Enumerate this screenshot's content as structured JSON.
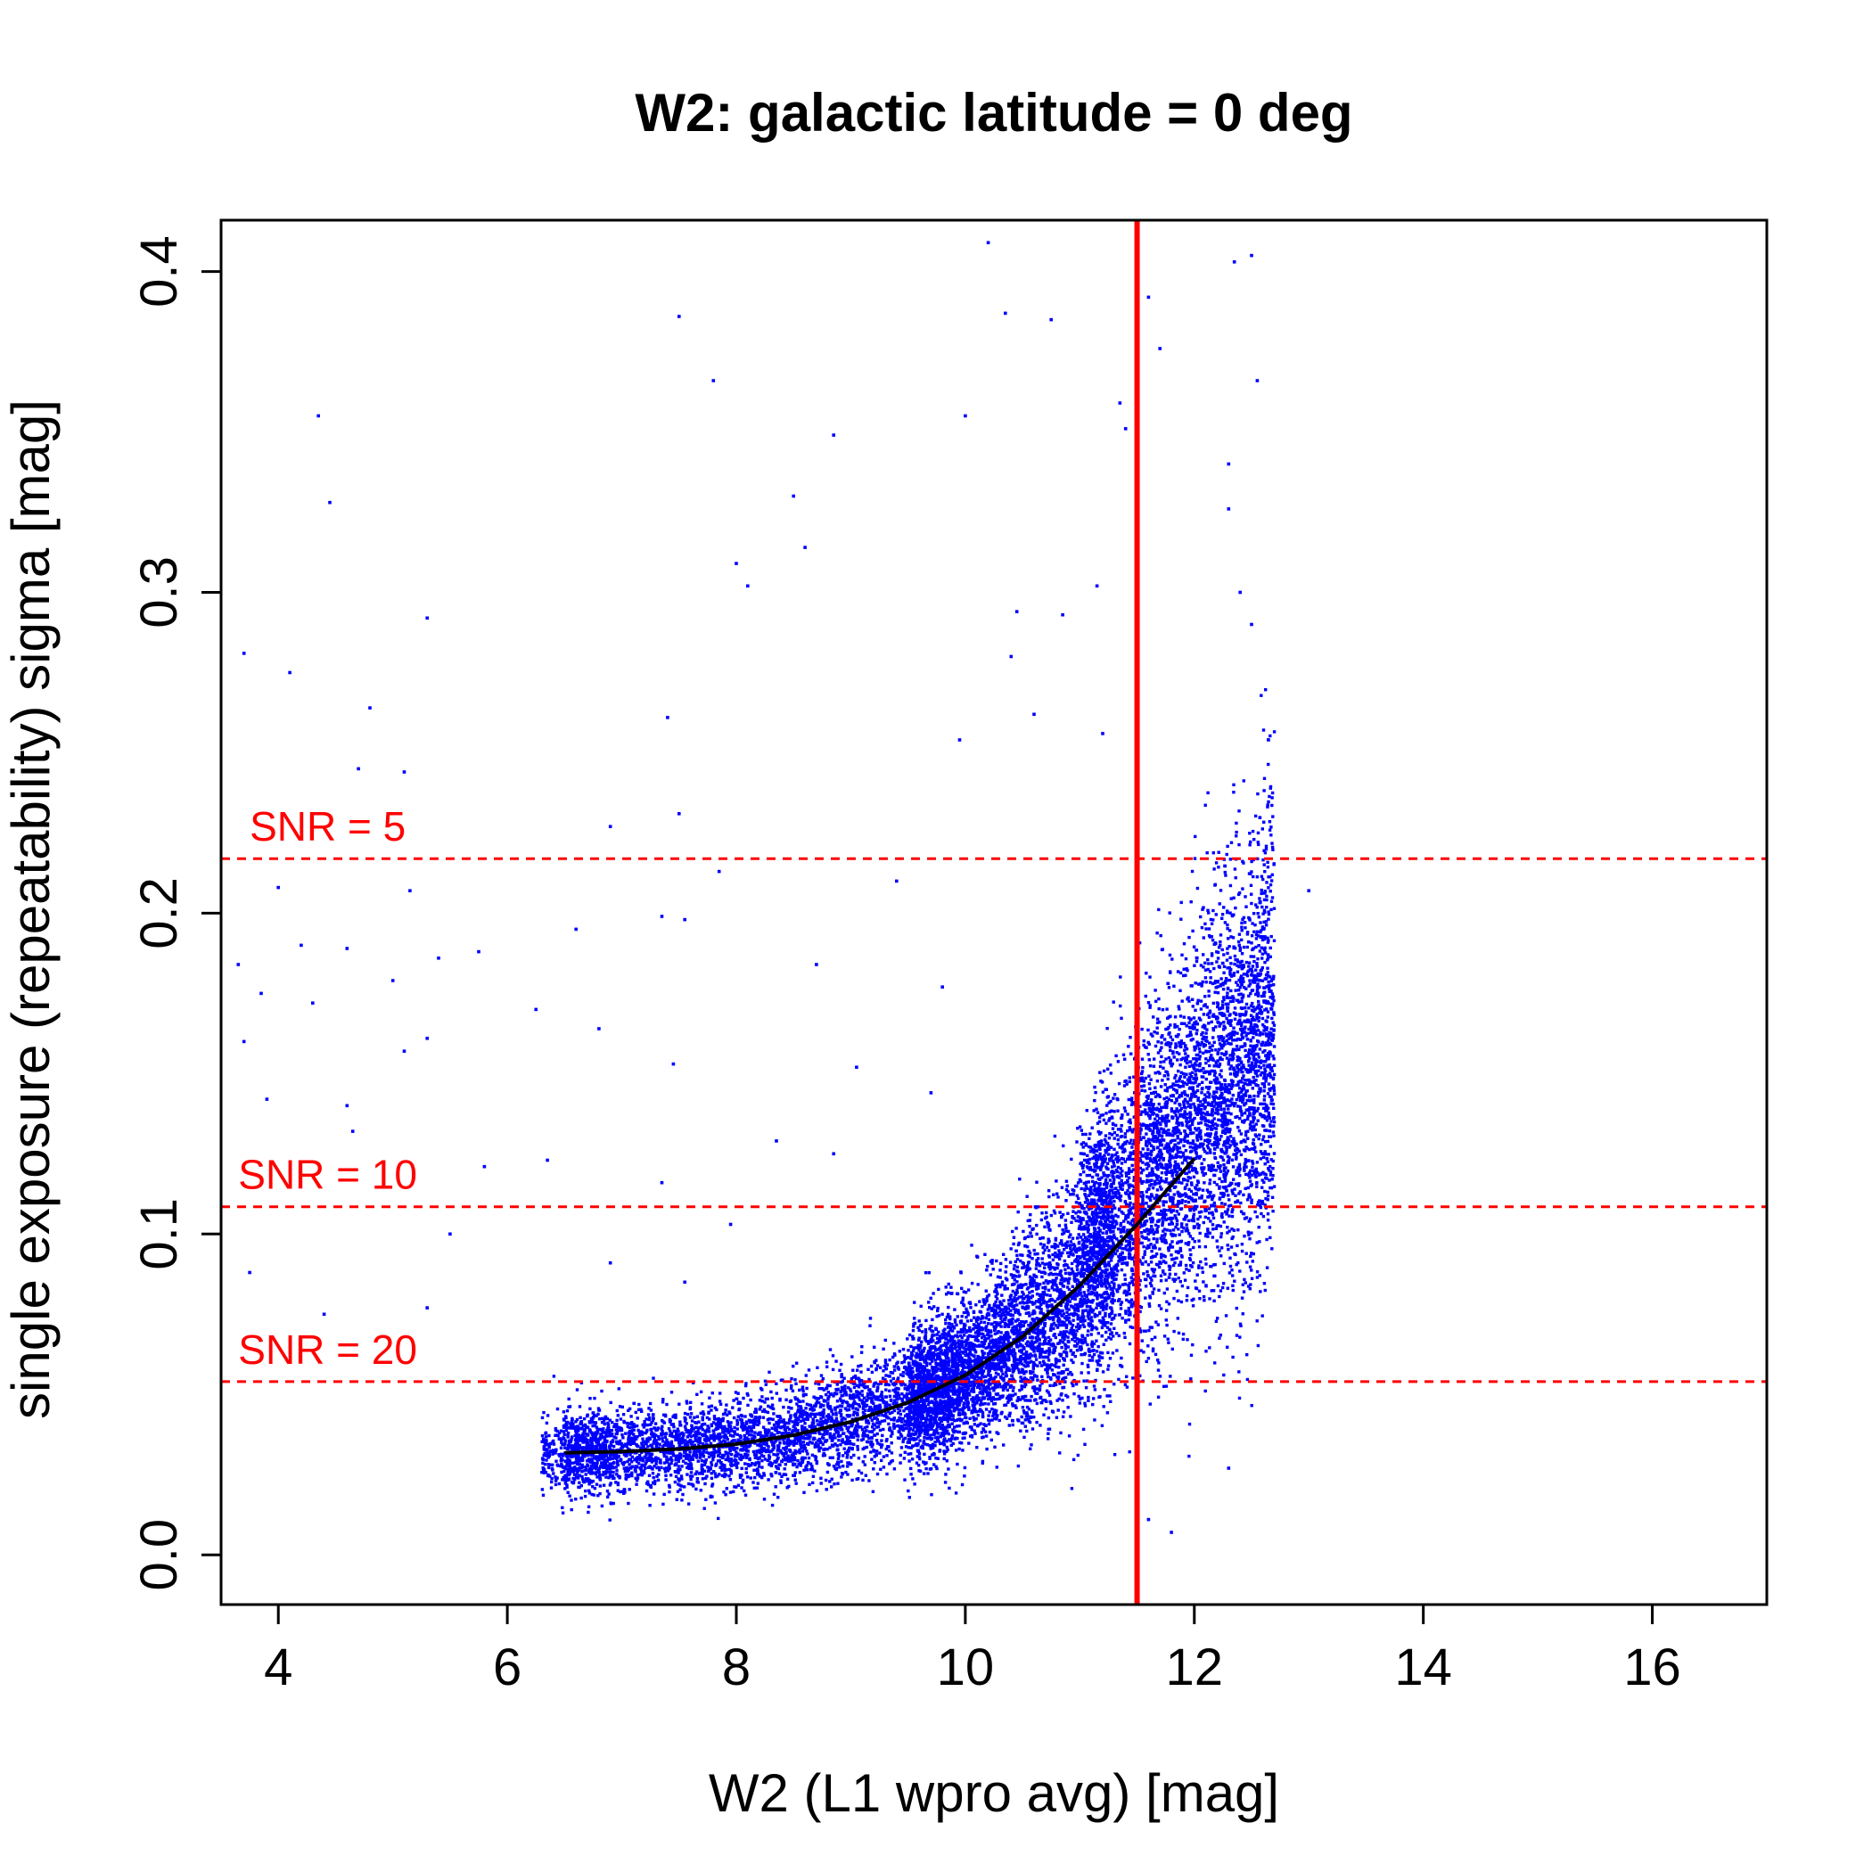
{
  "chart_data": {
    "type": "scatter",
    "title": "W2: galactic latitude = 0 deg",
    "xlabel": "W2 (L1 wpro avg) [mag]",
    "ylabel": "single exposure (repeatability) sigma [mag]",
    "xlim": [
      3.5,
      17.0
    ],
    "ylim": [
      -0.0155,
      0.416
    ],
    "xticks": [
      4,
      6,
      8,
      10,
      12,
      14,
      16
    ],
    "xtick_labels": [
      "4",
      "6",
      "8",
      "10",
      "12",
      "14",
      "16"
    ],
    "yticks": [
      0.0,
      0.1,
      0.2,
      0.3,
      0.4
    ],
    "ytick_labels": [
      "0.0",
      "0.1",
      "0.2",
      "0.3",
      "0.4"
    ],
    "grid": false,
    "legend": "none",
    "colors": {
      "points": "#0000ff",
      "reference_lines": "#ff0000",
      "fit_curve": "#000000"
    },
    "series": [
      {
        "kind": "scatter",
        "approximate_point_count": 12000,
        "distribution": {
          "x_range": [
            6.3,
            12.7
          ],
          "baseline_sigma": 0.032,
          "rises_steeply_above_x": 10,
          "max_dense_sigma_near_x_12": 0.2,
          "sparse_outliers_x_range": [
            3.6,
            13.0
          ]
        },
        "outliers": [
          [
            3.7,
            0.281
          ],
          [
            4.1,
            0.275
          ],
          [
            4.35,
            0.355
          ],
          [
            4.45,
            0.328
          ],
          [
            5.3,
            0.292
          ],
          [
            4.8,
            0.264
          ],
          [
            4.7,
            0.245
          ],
          [
            5.1,
            0.244
          ],
          [
            6.9,
            0.227
          ],
          [
            7.5,
            0.231
          ],
          [
            7.5,
            0.386
          ],
          [
            7.8,
            0.366
          ],
          [
            8.0,
            0.309
          ],
          [
            8.1,
            0.302
          ],
          [
            8.5,
            0.33
          ],
          [
            8.6,
            0.314
          ],
          [
            8.85,
            0.349
          ],
          [
            7.4,
            0.261
          ],
          [
            10.0,
            0.355
          ],
          [
            10.2,
            0.409
          ],
          [
            10.35,
            0.387
          ],
          [
            10.75,
            0.385
          ],
          [
            11.35,
            0.359
          ],
          [
            11.4,
            0.351
          ],
          [
            11.6,
            0.392
          ],
          [
            11.7,
            0.376
          ],
          [
            12.3,
            0.34
          ],
          [
            12.3,
            0.326
          ],
          [
            12.35,
            0.403
          ],
          [
            12.5,
            0.405
          ],
          [
            12.55,
            0.366
          ],
          [
            12.4,
            0.3
          ],
          [
            12.5,
            0.29
          ],
          [
            13.0,
            0.207
          ],
          [
            10.45,
            0.294
          ],
          [
            10.4,
            0.28
          ],
          [
            10.6,
            0.262
          ],
          [
            10.85,
            0.293
          ],
          [
            11.2,
            0.256
          ],
          [
            11.15,
            0.302
          ],
          [
            9.95,
            0.254
          ],
          [
            4.0,
            0.208
          ],
          [
            4.2,
            0.19
          ],
          [
            4.6,
            0.189
          ],
          [
            5.15,
            0.207
          ],
          [
            5.0,
            0.179
          ],
          [
            5.4,
            0.186
          ],
          [
            5.75,
            0.188
          ],
          [
            6.6,
            0.195
          ],
          [
            7.35,
            0.199
          ],
          [
            7.55,
            0.198
          ],
          [
            7.85,
            0.213
          ],
          [
            8.7,
            0.184
          ],
          [
            9.4,
            0.21
          ],
          [
            3.65,
            0.184
          ],
          [
            3.85,
            0.175
          ],
          [
            3.7,
            0.16
          ],
          [
            3.9,
            0.142
          ],
          [
            4.3,
            0.172
          ],
          [
            4.6,
            0.14
          ],
          [
            4.65,
            0.132
          ],
          [
            5.1,
            0.157
          ],
          [
            5.3,
            0.161
          ],
          [
            6.25,
            0.17
          ],
          [
            6.8,
            0.164
          ],
          [
            7.45,
            0.153
          ],
          [
            7.35,
            0.116
          ],
          [
            7.95,
            0.103
          ],
          [
            8.35,
            0.129
          ],
          [
            8.85,
            0.125
          ],
          [
            9.05,
            0.152
          ],
          [
            9.8,
            0.177
          ],
          [
            9.7,
            0.144
          ],
          [
            3.75,
            0.088
          ],
          [
            4.4,
            0.075
          ],
          [
            5.3,
            0.077
          ],
          [
            5.5,
            0.1
          ],
          [
            6.35,
            0.123
          ],
          [
            5.8,
            0.121
          ],
          [
            6.9,
            0.091
          ],
          [
            7.55,
            0.085
          ],
          [
            11.6,
            0.011
          ],
          [
            11.8,
            0.007
          ],
          [
            12.3,
            0.027
          ]
        ]
      },
      {
        "kind": "line",
        "label": "fit curve",
        "x": [
          6.5,
          7.0,
          7.5,
          8.0,
          8.5,
          9.0,
          9.5,
          10.0,
          10.5,
          11.0,
          11.5,
          12.0
        ],
        "y": [
          0.0318,
          0.0322,
          0.033,
          0.0345,
          0.0373,
          0.0415,
          0.0475,
          0.056,
          0.068,
          0.084,
          0.103,
          0.1235
        ]
      }
    ],
    "reference_lines": [
      {
        "orientation": "horizontal",
        "y": 0.217,
        "style": "dashed",
        "label": "SNR = 5",
        "label_x": 3.75
      },
      {
        "orientation": "horizontal",
        "y": 0.1085,
        "style": "dashed",
        "label": "SNR = 10",
        "label_x": 3.65
      },
      {
        "orientation": "horizontal",
        "y": 0.054,
        "style": "dashed",
        "label": "SNR = 20",
        "label_x": 3.65
      },
      {
        "orientation": "vertical",
        "x": 11.5,
        "style": "solid",
        "label": ""
      }
    ]
  }
}
